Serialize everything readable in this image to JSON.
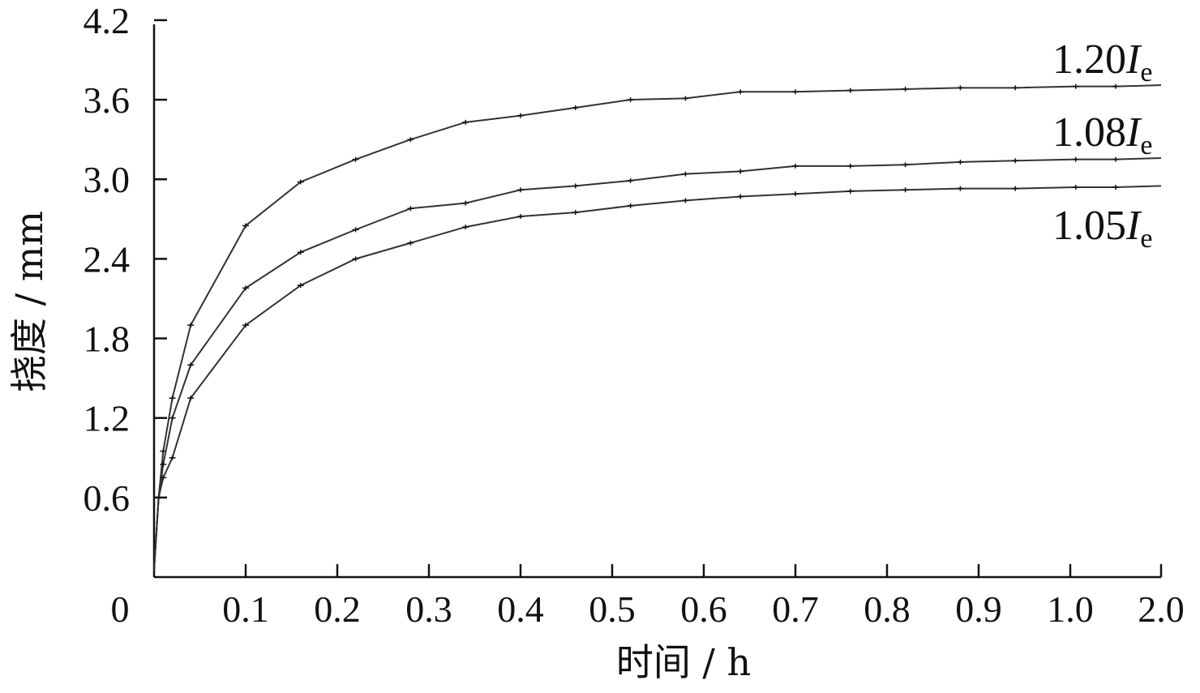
{
  "chart_data": {
    "type": "line",
    "xlabel": "时间 / h",
    "ylabel": "挠度 / mm",
    "x_ticks": [
      "0",
      "0.1",
      "0.2",
      "0.3",
      "0.4",
      "0.5",
      "0.6",
      "0.7",
      "0.8",
      "0.9",
      "1.0",
      "2.0"
    ],
    "y_ticks": [
      "0.6",
      "1.2",
      "1.8",
      "2.4",
      "3.0",
      "3.6",
      "4.2"
    ],
    "ylim": [
      0,
      4.2
    ],
    "x_scale": "piecewise: 0–1.0 linear, final tick interval 1.0–2.0",
    "series": [
      {
        "label_main": "1.20",
        "label_var": "I",
        "label_sub": "e",
        "points": [
          [
            0.0,
            0.05
          ],
          [
            0.005,
            0.6
          ],
          [
            0.01,
            0.95
          ],
          [
            0.02,
            1.35
          ],
          [
            0.04,
            1.9
          ],
          [
            0.1,
            2.65
          ],
          [
            0.16,
            2.98
          ],
          [
            0.22,
            3.15
          ],
          [
            0.28,
            3.3
          ],
          [
            0.34,
            3.43
          ],
          [
            0.4,
            3.48
          ],
          [
            0.46,
            3.54
          ],
          [
            0.52,
            3.6
          ],
          [
            0.58,
            3.61
          ],
          [
            0.64,
            3.66
          ],
          [
            0.7,
            3.66
          ],
          [
            0.76,
            3.67
          ],
          [
            0.82,
            3.68
          ],
          [
            0.88,
            3.69
          ],
          [
            0.94,
            3.69
          ],
          [
            1.06,
            3.7
          ],
          [
            1.5,
            3.7
          ],
          [
            2.0,
            3.71
          ]
        ]
      },
      {
        "label_main": "1.08",
        "label_var": "I",
        "label_sub": "e",
        "points": [
          [
            0.0,
            0.05
          ],
          [
            0.005,
            0.6
          ],
          [
            0.01,
            0.85
          ],
          [
            0.02,
            1.2
          ],
          [
            0.04,
            1.6
          ],
          [
            0.1,
            2.18
          ],
          [
            0.16,
            2.45
          ],
          [
            0.22,
            2.62
          ],
          [
            0.28,
            2.78
          ],
          [
            0.34,
            2.82
          ],
          [
            0.4,
            2.92
          ],
          [
            0.46,
            2.95
          ],
          [
            0.52,
            2.99
          ],
          [
            0.58,
            3.04
          ],
          [
            0.64,
            3.06
          ],
          [
            0.7,
            3.1
          ],
          [
            0.76,
            3.1
          ],
          [
            0.82,
            3.11
          ],
          [
            0.88,
            3.13
          ],
          [
            0.94,
            3.14
          ],
          [
            1.06,
            3.15
          ],
          [
            1.5,
            3.15
          ],
          [
            2.0,
            3.16
          ]
        ]
      },
      {
        "label_main": "1.05",
        "label_var": "I",
        "label_sub": "e",
        "points": [
          [
            0.0,
            0.05
          ],
          [
            0.005,
            0.6
          ],
          [
            0.01,
            0.75
          ],
          [
            0.02,
            0.9
          ],
          [
            0.04,
            1.35
          ],
          [
            0.1,
            1.9
          ],
          [
            0.16,
            2.2
          ],
          [
            0.22,
            2.4
          ],
          [
            0.28,
            2.52
          ],
          [
            0.34,
            2.64
          ],
          [
            0.4,
            2.72
          ],
          [
            0.46,
            2.75
          ],
          [
            0.52,
            2.8
          ],
          [
            0.58,
            2.84
          ],
          [
            0.64,
            2.87
          ],
          [
            0.7,
            2.89
          ],
          [
            0.76,
            2.91
          ],
          [
            0.82,
            2.92
          ],
          [
            0.88,
            2.93
          ],
          [
            0.94,
            2.93
          ],
          [
            1.06,
            2.94
          ],
          [
            1.5,
            2.94
          ],
          [
            2.0,
            2.95
          ]
        ]
      }
    ]
  }
}
